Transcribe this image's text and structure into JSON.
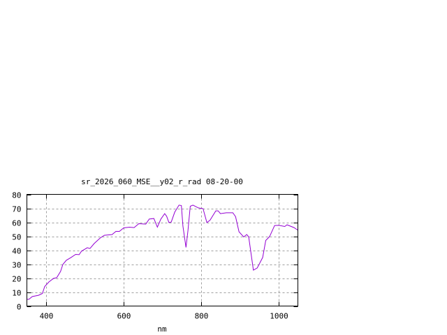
{
  "chart_data": {
    "type": "line",
    "title": "sr_2026_060_MSE__y02_r_rad 08-20-00",
    "xlabel": "nm",
    "ylabel": "",
    "xlim": [
      350,
      1050
    ],
    "ylim": [
      0,
      80
    ],
    "xticks": [
      400,
      600,
      800,
      1000
    ],
    "yticks": [
      0,
      10,
      20,
      30,
      40,
      50,
      60,
      70,
      80
    ],
    "grid": true,
    "legend": "none",
    "series": [
      {
        "color": "#9400d3",
        "x": [
          350,
          355,
          364,
          380,
          390,
          396,
          407,
          419,
          427,
          437,
          443,
          452,
          464,
          476,
          485,
          491,
          506,
          513,
          524,
          539,
          550,
          570,
          580,
          589,
          600,
          615,
          627,
          639,
          657,
          666,
          678,
          687,
          696,
          706,
          711,
          717,
          723,
          732,
          743,
          749,
          753,
          761,
          766,
          772,
          779,
          793,
          805,
          815,
          823,
          838,
          844,
          850,
          865,
          882,
          889,
          898,
          910,
          918,
          923,
          935,
          945,
          959,
          967,
          977,
          990,
          1001,
          1016,
          1022,
          1040,
          1050
        ],
        "y": [
          4.8,
          4.8,
          6.8,
          7.7,
          9,
          14,
          17.3,
          19.8,
          20.3,
          24.8,
          29.8,
          32.8,
          34.8,
          37,
          36.8,
          39.3,
          41.8,
          41.2,
          44.8,
          48.7,
          50.7,
          51.2,
          53.5,
          53.5,
          56,
          56.5,
          56.2,
          59,
          58.7,
          62.3,
          62.7,
          56.5,
          62.3,
          66.2,
          64.3,
          59.8,
          60.2,
          67.3,
          72.3,
          72,
          57.3,
          42,
          54,
          71.5,
          72.3,
          70.3,
          69.8,
          59.8,
          61.5,
          68.2,
          68.2,
          66.2,
          66.8,
          66.8,
          64,
          53.2,
          49.5,
          51.2,
          49.5,
          25.7,
          27.3,
          34.8,
          47,
          49.8,
          57.7,
          57.8,
          57,
          58.2,
          56.2,
          54.3
        ]
      }
    ]
  }
}
